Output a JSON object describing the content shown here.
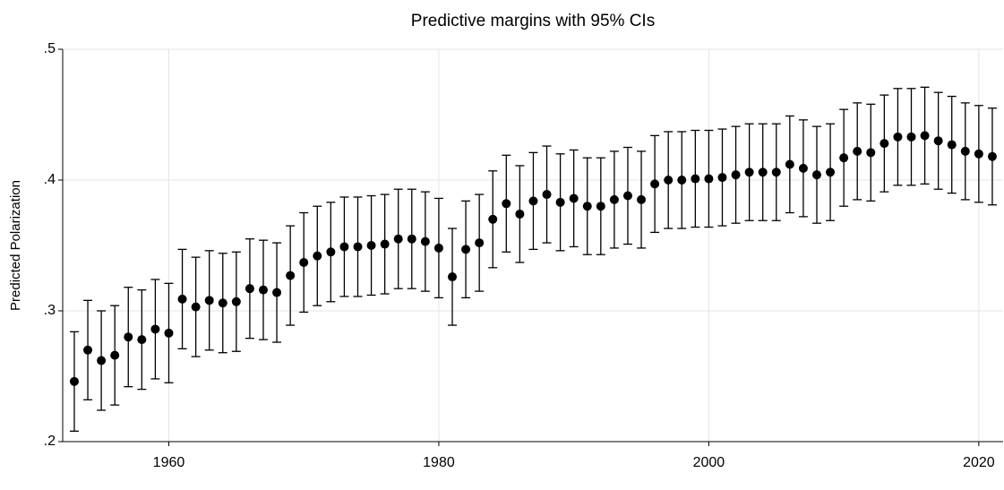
{
  "chart_data": {
    "type": "errorbar",
    "title": "Predictive margins with 95% CIs",
    "y_label": "Predicted Polarization",
    "x": [
      1953,
      1954,
      1955,
      1956,
      1957,
      1958,
      1959,
      1960,
      1961,
      1962,
      1963,
      1964,
      1965,
      1966,
      1967,
      1968,
      1969,
      1970,
      1971,
      1972,
      1973,
      1974,
      1975,
      1976,
      1977,
      1978,
      1979,
      1980,
      1981,
      1982,
      1983,
      1984,
      1985,
      1986,
      1987,
      1988,
      1989,
      1990,
      1991,
      1992,
      1993,
      1994,
      1995,
      1996,
      1997,
      1998,
      1999,
      2000,
      2001,
      2002,
      2003,
      2004,
      2005,
      2006,
      2007,
      2008,
      2009,
      2010,
      2011,
      2012,
      2013,
      2014,
      2015,
      2016,
      2017,
      2018,
      2019,
      2020,
      2021
    ],
    "values": [
      0.246,
      0.27,
      0.262,
      0.266,
      0.28,
      0.278,
      0.286,
      0.283,
      0.309,
      0.303,
      0.308,
      0.306,
      0.307,
      0.317,
      0.316,
      0.314,
      0.327,
      0.337,
      0.342,
      0.345,
      0.349,
      0.349,
      0.35,
      0.351,
      0.355,
      0.355,
      0.353,
      0.348,
      0.326,
      0.347,
      0.352,
      0.37,
      0.382,
      0.374,
      0.384,
      0.389,
      0.383,
      0.386,
      0.38,
      0.38,
      0.385,
      0.388,
      0.385,
      0.397,
      0.4,
      0.4,
      0.401,
      0.401,
      0.402,
      0.404,
      0.406,
      0.406,
      0.406,
      0.412,
      0.409,
      0.404,
      0.406,
      0.417,
      0.422,
      0.421,
      0.428,
      0.433,
      0.433,
      0.434,
      0.43,
      0.427,
      0.422,
      0.42,
      0.418
    ],
    "errors": [
      0.038,
      0.038,
      0.038,
      0.038,
      0.038,
      0.038,
      0.038,
      0.038,
      0.038,
      0.038,
      0.038,
      0.038,
      0.038,
      0.038,
      0.038,
      0.038,
      0.038,
      0.038,
      0.038,
      0.038,
      0.038,
      0.038,
      0.038,
      0.038,
      0.038,
      0.038,
      0.038,
      0.038,
      0.037,
      0.037,
      0.037,
      0.037,
      0.037,
      0.037,
      0.037,
      0.037,
      0.037,
      0.037,
      0.037,
      0.037,
      0.037,
      0.037,
      0.037,
      0.037,
      0.037,
      0.037,
      0.037,
      0.037,
      0.037,
      0.037,
      0.037,
      0.037,
      0.037,
      0.037,
      0.037,
      0.037,
      0.037,
      0.037,
      0.037,
      0.037,
      0.037,
      0.037,
      0.037,
      0.037,
      0.037,
      0.037,
      0.037,
      0.037,
      0.037
    ],
    "color": "#000000",
    "xlim": [
      1952.14,
      2021.8
    ],
    "xticks": [
      1960,
      1980,
      2000,
      2020
    ],
    "ylim": [
      0.2,
      0.5
    ],
    "yticks": [
      {
        "value": 0.2,
        "label": ".2"
      },
      {
        "value": 0.3,
        "label": ".3"
      },
      {
        "value": 0.4,
        "label": ".4"
      },
      {
        "value": 0.5,
        "label": ".5"
      }
    ],
    "grid": true
  }
}
